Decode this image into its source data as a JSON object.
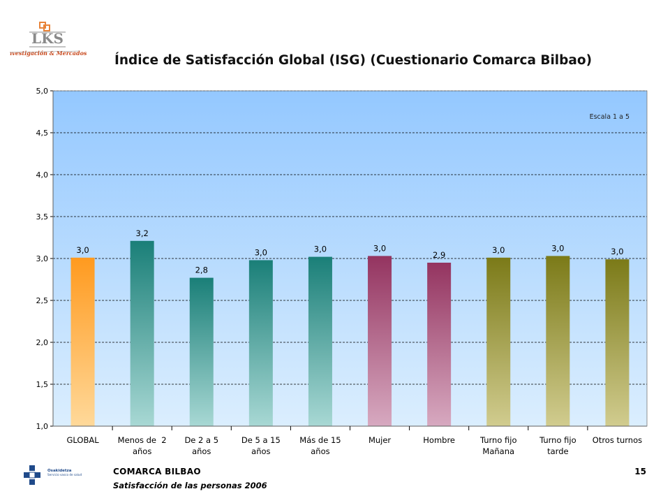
{
  "logo": {
    "text": "LKS",
    "tagline": "Investigación & Mercados"
  },
  "header": {
    "title": "Índice de Satisfacción Global (ISG) (Cuestionario Comarca Bilbao)"
  },
  "footer": {
    "org": "COMARCA BILBAO",
    "subtitle": "Satisfacción de las personas 2006",
    "page": "15",
    "osakidetza_line1": "Osakidetza",
    "osakidetza_line2": "Servicio vasco de salud"
  },
  "chart_data": {
    "type": "bar",
    "note": "Escala 1 a 5",
    "ylim": [
      1.0,
      5.0
    ],
    "yticks": [
      "1,0",
      "1,5",
      "2,0",
      "2,5",
      "3,0",
      "3,5",
      "4,0",
      "4,5",
      "5,0"
    ],
    "grid": true,
    "categories": [
      [
        "GLOBAL"
      ],
      [
        "Menos de  2",
        "años"
      ],
      [
        "De 2 a 5",
        "años"
      ],
      [
        "De 5 a 15",
        "años"
      ],
      [
        "Más de 15",
        "años"
      ],
      [
        "Mujer"
      ],
      [
        "Hombre"
      ],
      [
        "Turno fijo",
        "Mañana"
      ],
      [
        "Turno fijo",
        "tarde"
      ],
      [
        "Otros turnos"
      ]
    ],
    "values": [
      3.01,
      3.21,
      2.77,
      2.98,
      3.02,
      3.03,
      2.95,
      3.01,
      3.03,
      2.99
    ],
    "labels": [
      "3,0",
      "3,2",
      "2,8",
      "3,0",
      "3,0",
      "3,0",
      "2,9",
      "3,0",
      "3,0",
      "3,0"
    ],
    "colors": [
      [
        "#ff9a1f",
        "#ffd99a"
      ],
      [
        "#1a7f78",
        "#a8d8d4"
      ],
      [
        "#1a7f78",
        "#a8d8d4"
      ],
      [
        "#1a7f78",
        "#a8d8d4"
      ],
      [
        "#1a7f78",
        "#a8d8d4"
      ],
      [
        "#943460",
        "#d7a9c0"
      ],
      [
        "#943460",
        "#d7a9c0"
      ],
      [
        "#7b7a18",
        "#d1cc8f"
      ],
      [
        "#7b7a18",
        "#d1cc8f"
      ],
      [
        "#7b7a18",
        "#d1cc8f"
      ]
    ],
    "background_gradient": [
      "#94c8ff",
      "#dbeefe"
    ]
  }
}
